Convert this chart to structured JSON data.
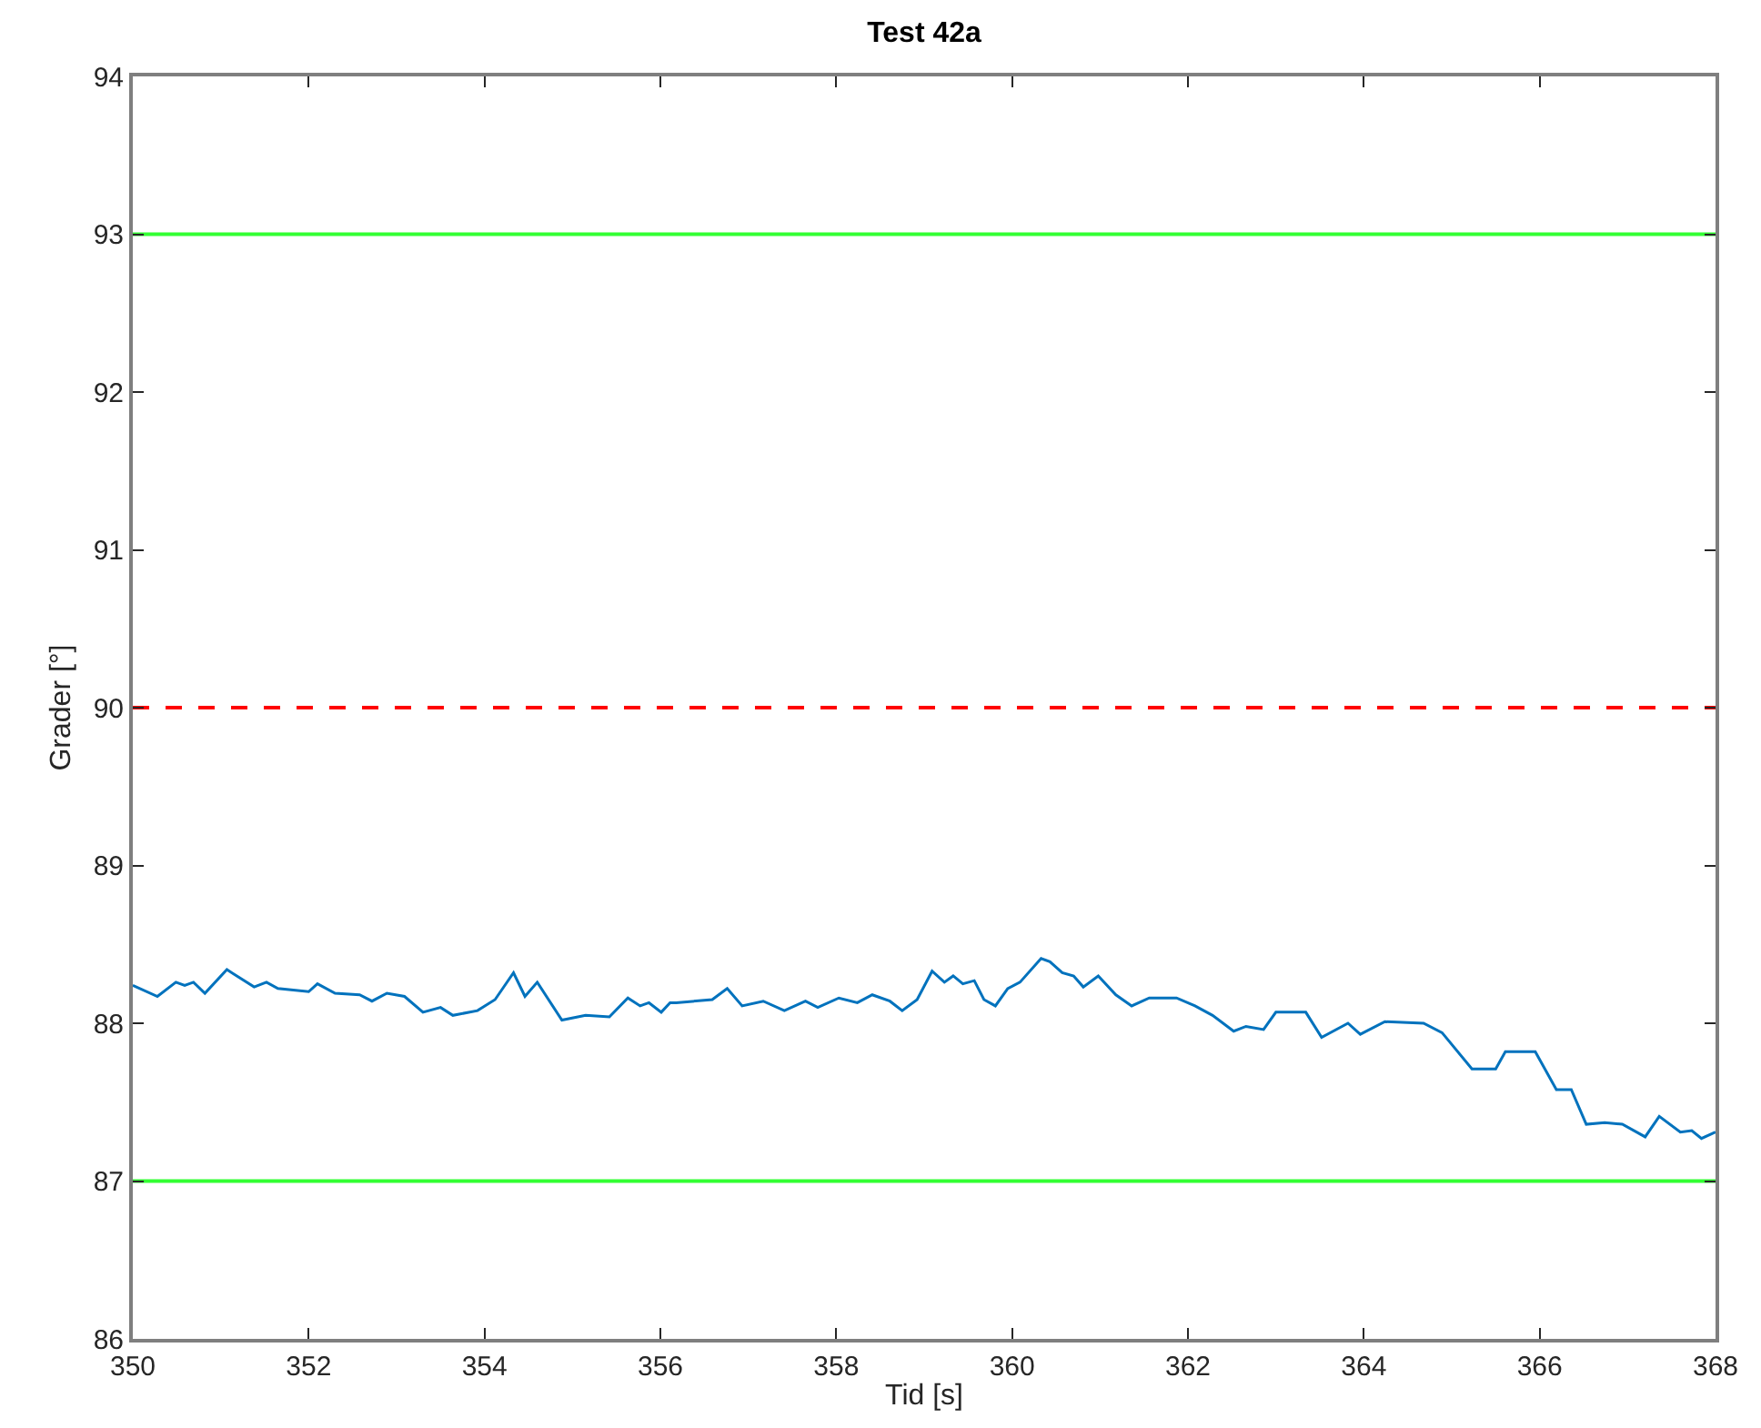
{
  "chart_data": {
    "type": "line",
    "title": "Test 42a",
    "xlabel": "Tid [s]",
    "ylabel": "Grader [°]",
    "xlim": [
      350,
      368
    ],
    "xticks": [
      350,
      352,
      354,
      356,
      358,
      360,
      362,
      364,
      366,
      368
    ],
    "ylim": [
      86,
      94
    ],
    "yticks": [
      86,
      87,
      88,
      89,
      90,
      91,
      92,
      93,
      94
    ],
    "grid": false,
    "marker": "none",
    "line_style": "solid",
    "ref_lines": [
      {
        "axis": "y",
        "value": 93,
        "color": "#33ff33",
        "line_style": "solid"
      },
      {
        "axis": "y",
        "value": 90,
        "color": "#ff0000",
        "line_style": "dashed"
      },
      {
        "axis": "y",
        "value": 87,
        "color": "#33ff33",
        "line_style": "solid"
      }
    ],
    "series": [
      {
        "color": "#0072bd",
        "x": [
          350.0,
          350.28,
          350.49,
          350.59,
          350.69,
          350.82,
          351.07,
          351.38,
          351.52,
          351.65,
          352.0,
          352.1,
          352.3,
          352.58,
          352.72,
          352.89,
          353.09,
          353.3,
          353.5,
          353.64,
          353.92,
          354.12,
          354.33,
          354.46,
          354.6,
          354.88,
          355.15,
          355.42,
          355.63,
          355.77,
          355.87,
          356.01,
          356.11,
          356.18,
          356.59,
          356.76,
          356.93,
          357.17,
          357.41,
          357.65,
          357.79,
          358.03,
          358.24,
          358.41,
          358.61,
          358.75,
          358.92,
          359.09,
          359.23,
          359.33,
          359.44,
          359.57,
          359.68,
          359.81,
          359.95,
          360.09,
          360.33,
          360.43,
          360.57,
          360.7,
          360.81,
          360.98,
          361.18,
          361.36,
          361.56,
          361.87,
          362.08,
          362.28,
          362.52,
          362.66,
          362.86,
          363.0,
          363.34,
          363.52,
          363.82,
          363.96,
          364.24,
          364.68,
          364.89,
          365.23,
          365.5,
          365.61,
          365.95,
          366.19,
          366.36,
          366.53,
          366.74,
          366.94,
          367.2,
          367.36,
          367.6,
          367.73,
          367.84,
          368.0
        ],
        "values": [
          88.24,
          88.17,
          88.26,
          88.24,
          88.26,
          88.19,
          88.34,
          88.23,
          88.26,
          88.22,
          88.2,
          88.25,
          88.19,
          88.18,
          88.14,
          88.19,
          88.17,
          88.07,
          88.1,
          88.05,
          88.08,
          88.15,
          88.32,
          88.17,
          88.26,
          88.02,
          88.05,
          88.04,
          88.16,
          88.11,
          88.13,
          88.07,
          88.13,
          88.13,
          88.15,
          88.22,
          88.11,
          88.14,
          88.08,
          88.14,
          88.1,
          88.16,
          88.13,
          88.18,
          88.14,
          88.08,
          88.15,
          88.33,
          88.26,
          88.3,
          88.25,
          88.27,
          88.15,
          88.11,
          88.22,
          88.26,
          88.41,
          88.39,
          88.32,
          88.3,
          88.23,
          88.3,
          88.18,
          88.11,
          88.16,
          88.16,
          88.11,
          88.05,
          87.95,
          87.98,
          87.96,
          88.07,
          88.07,
          87.91,
          88.0,
          87.93,
          88.01,
          88.0,
          87.94,
          87.71,
          87.71,
          87.82,
          87.82,
          87.58,
          87.58,
          87.36,
          87.37,
          87.36,
          87.28,
          87.41,
          87.31,
          87.32,
          87.27,
          87.31
        ]
      }
    ]
  }
}
